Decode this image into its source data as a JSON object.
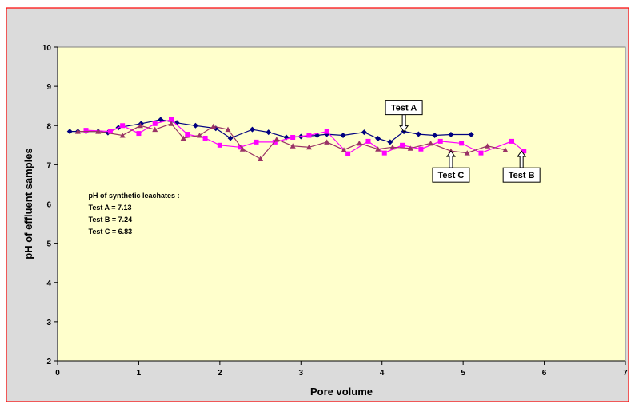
{
  "chart_data": {
    "type": "line",
    "title": "",
    "xlabel": "Pore volume",
    "ylabel": "pH of effluent samples",
    "xlim": [
      0,
      7
    ],
    "ylim": [
      2,
      10
    ],
    "x_ticks": [
      "0",
      "1",
      "2",
      "3",
      "4",
      "5",
      "6",
      "7"
    ],
    "y_ticks": [
      "2",
      "3",
      "4",
      "5",
      "6",
      "7",
      "8",
      "9",
      "10"
    ],
    "grid": false,
    "legend": "none",
    "note": {
      "lines": [
        "pH of  synthetic leachates :",
        "Test A = 7.13",
        "Test B = 7.24",
        "Test C = 6.83"
      ]
    },
    "callouts": [
      {
        "text": "Test A",
        "arrow_x": 4.27,
        "arrow_y": 7.85,
        "direction": "down"
      },
      {
        "text": "Test C",
        "arrow_x": 4.85,
        "arrow_y": 7.35,
        "direction": "up"
      },
      {
        "text": "Test B",
        "arrow_x": 5.72,
        "arrow_y": 7.35,
        "direction": "up"
      }
    ],
    "series": [
      {
        "label": "Test A",
        "color": "#000080",
        "marker": "diamond",
        "points": [
          [
            0.15,
            7.85
          ],
          [
            0.25,
            7.85
          ],
          [
            0.35,
            7.85
          ],
          [
            0.5,
            7.85
          ],
          [
            0.62,
            7.82
          ],
          [
            0.75,
            7.95
          ],
          [
            1.03,
            8.05
          ],
          [
            1.27,
            8.15
          ],
          [
            1.47,
            8.07
          ],
          [
            1.7,
            8.0
          ],
          [
            1.95,
            7.93
          ],
          [
            2.13,
            7.68
          ],
          [
            2.4,
            7.9
          ],
          [
            2.6,
            7.83
          ],
          [
            2.82,
            7.7
          ],
          [
            3.0,
            7.72
          ],
          [
            3.2,
            7.75
          ],
          [
            3.32,
            7.78
          ],
          [
            3.52,
            7.75
          ],
          [
            3.78,
            7.83
          ],
          [
            3.95,
            7.67
          ],
          [
            4.1,
            7.58
          ],
          [
            4.27,
            7.85
          ],
          [
            4.45,
            7.78
          ],
          [
            4.65,
            7.75
          ],
          [
            4.85,
            7.77
          ],
          [
            5.1,
            7.77
          ]
        ]
      },
      {
        "label": "Test B",
        "color": "#ff00ff",
        "marker": "square",
        "points": [
          [
            0.35,
            7.88
          ],
          [
            0.65,
            7.85
          ],
          [
            0.8,
            8.0
          ],
          [
            1.0,
            7.8
          ],
          [
            1.2,
            8.05
          ],
          [
            1.4,
            8.15
          ],
          [
            1.6,
            7.78
          ],
          [
            1.82,
            7.68
          ],
          [
            2.0,
            7.5
          ],
          [
            2.25,
            7.45
          ],
          [
            2.45,
            7.58
          ],
          [
            2.68,
            7.58
          ],
          [
            2.9,
            7.7
          ],
          [
            3.1,
            7.75
          ],
          [
            3.32,
            7.85
          ],
          [
            3.58,
            7.28
          ],
          [
            3.83,
            7.6
          ],
          [
            4.03,
            7.3
          ],
          [
            4.25,
            7.5
          ],
          [
            4.48,
            7.4
          ],
          [
            4.72,
            7.6
          ],
          [
            4.98,
            7.55
          ],
          [
            5.22,
            7.3
          ],
          [
            5.6,
            7.6
          ],
          [
            5.75,
            7.35
          ]
        ]
      },
      {
        "label": "Test C",
        "color": "#993366",
        "marker": "triangle",
        "points": [
          [
            0.25,
            7.85
          ],
          [
            0.5,
            7.85
          ],
          [
            0.8,
            7.75
          ],
          [
            1.02,
            8.0
          ],
          [
            1.2,
            7.9
          ],
          [
            1.4,
            8.05
          ],
          [
            1.55,
            7.68
          ],
          [
            1.75,
            7.75
          ],
          [
            1.92,
            7.98
          ],
          [
            2.1,
            7.9
          ],
          [
            2.28,
            7.4
          ],
          [
            2.5,
            7.15
          ],
          [
            2.7,
            7.65
          ],
          [
            2.9,
            7.48
          ],
          [
            3.1,
            7.45
          ],
          [
            3.32,
            7.58
          ],
          [
            3.53,
            7.38
          ],
          [
            3.72,
            7.55
          ],
          [
            3.95,
            7.4
          ],
          [
            4.13,
            7.45
          ],
          [
            4.35,
            7.42
          ],
          [
            4.6,
            7.55
          ],
          [
            4.85,
            7.35
          ],
          [
            5.05,
            7.3
          ],
          [
            5.3,
            7.48
          ],
          [
            5.52,
            7.38
          ]
        ]
      }
    ]
  }
}
